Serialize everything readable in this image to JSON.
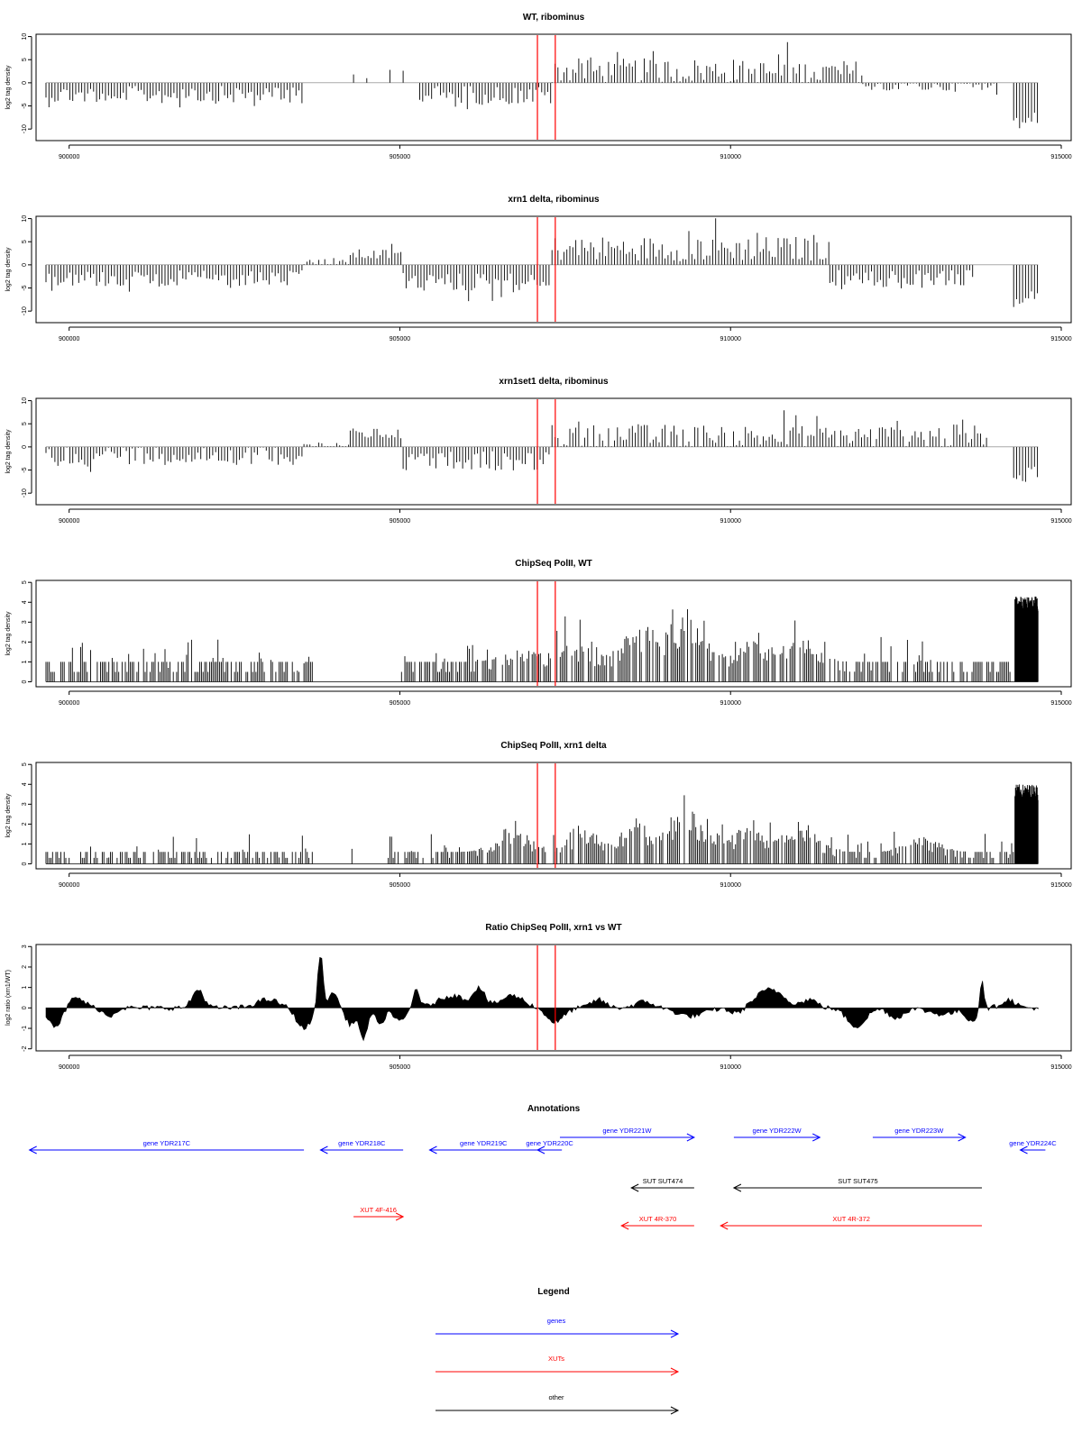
{
  "chart_data": [
    {
      "type": "bar",
      "title": "WT, ribominus",
      "ylabel": "log2 tag density",
      "xlabel": "",
      "xlim": [
        899500,
        915150
      ],
      "ylim": [
        -12.5,
        10.5
      ],
      "yticks": [
        -10,
        -5,
        0,
        5,
        10
      ],
      "xticks": [
        900000,
        905000,
        910000,
        915000
      ],
      "xtick_labels": [
        "900000",
        "905000",
        "910000",
        "915000"
      ],
      "grid": false,
      "legend": "none",
      "reference_lines_x": [
        907080,
        907350
      ],
      "reference_line_color": "#ff0000",
      "approx_profile": {
        "x_start": 899650,
        "step_bp": 45,
        "segments": [
          {
            "x_end": 903550,
            "sign": -1,
            "mean": 2.6,
            "amp": 3.2
          },
          {
            "x_end": 905300,
            "sign": 0,
            "mean": 0.0,
            "amp": 0.0,
            "sparse_peaks": [
              [
                904300,
                1.8
              ],
              [
                904500,
                1.0
              ],
              [
                904850,
                2.8
              ],
              [
                905050,
                2.6
              ]
            ]
          },
          {
            "x_end": 907300,
            "sign": -1,
            "mean": 2.7,
            "amp": 3.5
          },
          {
            "x_end": 910050,
            "sign": 1,
            "mean": 2.6,
            "amp": 4.5
          },
          {
            "x_end": 912000,
            "sign": 1,
            "mean": 2.2,
            "amp": 4.5
          },
          {
            "x_end": 914050,
            "sign": -1,
            "mean": 0.6,
            "amp": 2.2
          },
          {
            "x_end": 914280,
            "sign": 0,
            "mean": 0.0,
            "amp": 0.0
          },
          {
            "x_end": 914650,
            "sign": -1,
            "mean": 7.0,
            "amp": 3.0
          }
        ]
      }
    },
    {
      "type": "bar",
      "title": "xrn1 delta, ribominus",
      "ylabel": "log2 tag density",
      "xlabel": "",
      "xlim": [
        899500,
        915150
      ],
      "ylim": [
        -12.5,
        10.5
      ],
      "yticks": [
        -10,
        -5,
        0,
        5,
        10
      ],
      "xticks": [
        900000,
        905000,
        910000,
        915000
      ],
      "xtick_labels": [
        "900000",
        "905000",
        "910000",
        "915000"
      ],
      "grid": false,
      "legend": "none",
      "reference_lines_x": [
        907080,
        907350
      ],
      "reference_line_color": "#ff0000",
      "approx_profile": {
        "x_start": 899650,
        "step_bp": 45,
        "segments": [
          {
            "x_end": 903550,
            "sign": -1,
            "mean": 3.0,
            "amp": 3.0
          },
          {
            "x_end": 904250,
            "sign": 1,
            "mean": 0.5,
            "amp": 2.0
          },
          {
            "x_end": 905050,
            "sign": 1,
            "mean": 2.2,
            "amp": 2.0
          },
          {
            "x_end": 907300,
            "sign": -1,
            "mean": 3.8,
            "amp": 3.5
          },
          {
            "x_end": 911500,
            "sign": 1,
            "mean": 3.5,
            "amp": 4.5
          },
          {
            "x_end": 913700,
            "sign": -1,
            "mean": 3.2,
            "amp": 3.5
          },
          {
            "x_end": 914280,
            "sign": 0,
            "mean": 0.0,
            "amp": 0.0
          },
          {
            "x_end": 914650,
            "sign": -1,
            "mean": 7.5,
            "amp": 3.0
          }
        ]
      }
    },
    {
      "type": "bar",
      "title": "xrn1set1 delta, ribominus",
      "ylabel": "log2 tag density",
      "xlabel": "",
      "xlim": [
        899500,
        915150
      ],
      "ylim": [
        -12.5,
        10.5
      ],
      "yticks": [
        -10,
        -5,
        0,
        5,
        10
      ],
      "xticks": [
        900000,
        905000,
        910000,
        915000
      ],
      "xtick_labels": [
        "900000",
        "905000",
        "910000",
        "915000"
      ],
      "grid": false,
      "legend": "none",
      "reference_lines_x": [
        907080,
        907350
      ],
      "reference_line_color": "#ff0000",
      "approx_profile": {
        "x_start": 899650,
        "step_bp": 45,
        "segments": [
          {
            "x_end": 903550,
            "sign": -1,
            "mean": 1.8,
            "amp": 3.5
          },
          {
            "x_end": 904250,
            "sign": 1,
            "mean": 0.4,
            "amp": 1.5
          },
          {
            "x_end": 905050,
            "sign": 1,
            "mean": 2.8,
            "amp": 2.0
          },
          {
            "x_end": 907300,
            "sign": -1,
            "mean": 3.0,
            "amp": 3.5
          },
          {
            "x_end": 913900,
            "sign": 1,
            "mean": 2.2,
            "amp": 4.5
          },
          {
            "x_end": 914280,
            "sign": 0,
            "mean": 0.0,
            "amp": 0.0
          },
          {
            "x_end": 914650,
            "sign": -1,
            "mean": 6.0,
            "amp": 3.0
          }
        ]
      }
    },
    {
      "type": "bar",
      "title": "ChipSeq PolII, WT",
      "ylabel": "log2 tag density",
      "xlabel": "",
      "xlim": [
        899500,
        915150
      ],
      "ylim": [
        -0.25,
        5.1
      ],
      "yticks": [
        0,
        1,
        2,
        3,
        4,
        5
      ],
      "xticks": [
        900000,
        905000,
        910000,
        915000
      ],
      "xtick_labels": [
        "900000",
        "905000",
        "910000",
        "915000"
      ],
      "grid": false,
      "legend": "none",
      "reference_lines_x": [
        907080,
        907350
      ],
      "reference_line_color": "#ff0000",
      "approx_profile": {
        "x_start": 899650,
        "step_bp": 25,
        "baseline": 1.0,
        "noise_max": 2.3,
        "gaps": [
          [
            903700,
            905000
          ]
        ],
        "peaks": [
          [
            906800,
            0.6
          ],
          [
            907600,
            0.9
          ],
          [
            908600,
            1.5
          ],
          [
            909300,
            2.2
          ],
          [
            910300,
            0.9
          ],
          [
            911100,
            0.9
          ]
        ],
        "terminal_block": {
          "x_start": 914300,
          "x_end": 914650,
          "mean": 3.9
        }
      }
    },
    {
      "type": "bar",
      "title": "ChipSeq PolII, xrn1 delta",
      "ylabel": "log2 tag density",
      "xlabel": "",
      "xlim": [
        899500,
        915150
      ],
      "ylim": [
        -0.25,
        5.1
      ],
      "yticks": [
        0,
        1,
        2,
        3,
        4,
        5
      ],
      "xticks": [
        900000,
        905000,
        910000,
        915000
      ],
      "xtick_labels": [
        "900000",
        "905000",
        "910000",
        "915000"
      ],
      "grid": false,
      "legend": "none",
      "reference_lines_x": [
        907080,
        907350
      ],
      "reference_line_color": "#ff0000",
      "approx_profile": {
        "x_start": 899650,
        "step_bp": 25,
        "baseline": 0.6,
        "noise_max": 1.7,
        "gaps": [
          [
            903700,
            904800
          ]
        ],
        "peaks": [
          [
            906700,
            1.0
          ],
          [
            907700,
            0.9
          ],
          [
            908600,
            1.3
          ],
          [
            909350,
            2.1
          ],
          [
            910250,
            1.0
          ],
          [
            911050,
            1.2
          ],
          [
            912900,
            0.6
          ]
        ],
        "terminal_block": {
          "x_start": 914300,
          "x_end": 914650,
          "mean": 3.6
        }
      }
    },
    {
      "type": "area",
      "title": "Ratio ChipSeq PolII, xrn1 vs WT",
      "ylabel": "log2 ratio (xrn1/WT)",
      "xlabel": "",
      "xlim": [
        899500,
        915150
      ],
      "ylim": [
        -2.1,
        3.1
      ],
      "yticks": [
        -2,
        -1,
        0,
        1,
        2,
        3
      ],
      "xticks": [
        900000,
        905000,
        910000,
        915000
      ],
      "xtick_labels": [
        "900000",
        "905000",
        "910000",
        "915000"
      ],
      "grid": false,
      "legend": "none",
      "reference_lines_x": [
        907080,
        907350
      ],
      "reference_line_color": "#ff0000",
      "approx_profile": {
        "x_start": 899650,
        "x_end": 914650,
        "step_bp": 30,
        "bumps": [
          [
            899800,
            -0.9,
            150
          ],
          [
            900100,
            0.5,
            180
          ],
          [
            900600,
            -0.4,
            120
          ],
          [
            901950,
            0.9,
            120
          ],
          [
            903000,
            0.4,
            250
          ],
          [
            903550,
            -1.0,
            160
          ],
          [
            903800,
            2.7,
            60
          ],
          [
            904000,
            0.8,
            80
          ],
          [
            904250,
            -0.8,
            100
          ],
          [
            904450,
            -1.6,
            80
          ],
          [
            904700,
            -0.9,
            90
          ],
          [
            905000,
            -0.7,
            120
          ],
          [
            905250,
            1.0,
            60
          ],
          [
            905800,
            0.6,
            300
          ],
          [
            906200,
            0.9,
            120
          ],
          [
            906700,
            0.6,
            250
          ],
          [
            907350,
            -0.7,
            180
          ],
          [
            908000,
            0.4,
            150
          ],
          [
            908700,
            0.3,
            200
          ],
          [
            909400,
            -0.4,
            300
          ],
          [
            910100,
            -0.3,
            150
          ],
          [
            910600,
            0.9,
            300
          ],
          [
            911200,
            0.4,
            150
          ],
          [
            911900,
            -0.9,
            200
          ],
          [
            912500,
            -0.5,
            150
          ],
          [
            913200,
            -0.3,
            300
          ],
          [
            913650,
            -0.6,
            120
          ],
          [
            913800,
            1.6,
            40
          ],
          [
            914200,
            0.4,
            150
          ]
        ]
      }
    }
  ],
  "annotations": {
    "title": "Annotations",
    "features": [
      {
        "label": "gene YDR217C",
        "category": "genes",
        "strand": "-",
        "start": 899400,
        "end": 903550,
        "row": 1
      },
      {
        "label": "gene YDR218C",
        "category": "genes",
        "strand": "-",
        "start": 903800,
        "end": 905050,
        "row": 1
      },
      {
        "label": "gene YDR219C",
        "category": "genes",
        "strand": "-",
        "start": 905450,
        "end": 907080,
        "row": 1
      },
      {
        "label": "gene YDR220C",
        "category": "genes",
        "strand": "-",
        "start": 907080,
        "end": 907450,
        "row": 1
      },
      {
        "label": "gene YDR221W",
        "category": "genes",
        "strand": "+",
        "start": 907420,
        "end": 909450,
        "row": 0
      },
      {
        "label": "gene YDR222W",
        "category": "genes",
        "strand": "+",
        "start": 910050,
        "end": 911350,
        "row": 0
      },
      {
        "label": "gene YDR223W",
        "category": "genes",
        "strand": "+",
        "start": 912150,
        "end": 913550,
        "row": 0
      },
      {
        "label": "gene YDR224C",
        "category": "genes",
        "strand": "-",
        "start": 914380,
        "end": 914760,
        "row": 1
      },
      {
        "label": "SUT SUT474",
        "category": "other",
        "strand": "-",
        "start": 908500,
        "end": 909450,
        "row": 2
      },
      {
        "label": "SUT SUT475",
        "category": "other",
        "strand": "-",
        "start": 910050,
        "end": 913800,
        "row": 2
      },
      {
        "label": "XUT 4F-416",
        "category": "XUTs",
        "strand": "+",
        "start": 904300,
        "end": 905050,
        "row": 3
      },
      {
        "label": "XUT 4R-370",
        "category": "XUTs",
        "strand": "-",
        "start": 908350,
        "end": 909450,
        "row": 4
      },
      {
        "label": "XUT 4R-372",
        "category": "XUTs",
        "strand": "-",
        "start": 909850,
        "end": 913800,
        "row": 4
      }
    ]
  },
  "legend": {
    "title": "Legend",
    "entries": [
      {
        "label": "genes",
        "category": "genes"
      },
      {
        "label": "XUTs",
        "category": "XUTs"
      },
      {
        "label": "other",
        "category": "other"
      }
    ]
  },
  "colors": {
    "genes": "#0000ff",
    "XUTs": "#ff0000",
    "other": "#000000",
    "reference_line": "#ff0000",
    "bars": "#000000",
    "axis": "#000000"
  }
}
